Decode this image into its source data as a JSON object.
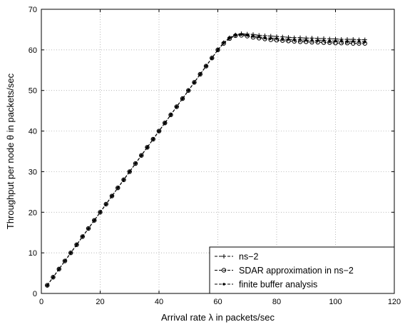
{
  "chart_data": {
    "type": "line",
    "xlabel": "Arrival rate λ in packets/sec",
    "ylabel": "Throughput per node θ in packets/sec",
    "xlim": [
      0,
      120
    ],
    "ylim": [
      0,
      70
    ],
    "xticks": [
      0,
      20,
      40,
      60,
      80,
      100,
      120
    ],
    "yticks": [
      0,
      10,
      20,
      30,
      40,
      50,
      60,
      70
    ],
    "x_tick_labels": [
      "0",
      "20",
      "40",
      "60",
      "80",
      "100",
      "120"
    ],
    "y_tick_labels": [
      "0",
      "10",
      "20",
      "30",
      "40",
      "50",
      "60",
      "70"
    ],
    "grid": true,
    "legend_position": "bottom-right",
    "x": [
      2,
      4,
      6,
      8,
      10,
      12,
      14,
      16,
      18,
      20,
      22,
      24,
      26,
      28,
      30,
      32,
      34,
      36,
      38,
      40,
      42,
      44,
      46,
      48,
      50,
      52,
      54,
      56,
      58,
      60,
      62,
      64,
      66,
      68,
      70,
      72,
      74,
      76,
      78,
      80,
      82,
      84,
      86,
      88,
      90,
      92,
      94,
      96,
      98,
      100,
      102,
      104,
      106,
      108,
      110
    ],
    "series": [
      {
        "name": "ns−2",
        "marker": "plus",
        "values": [
          2,
          4,
          6,
          8,
          10,
          12,
          14,
          16,
          18,
          20,
          22,
          24,
          26,
          28,
          30,
          32,
          34,
          36,
          38,
          40,
          42,
          44,
          46,
          48,
          50,
          52,
          54,
          56,
          58,
          60,
          61.8,
          63,
          63.7,
          64,
          63.9,
          63.8,
          63.6,
          63.5,
          63.4,
          63.3,
          63.2,
          63.1,
          63.0,
          63.0,
          62.9,
          62.9,
          62.8,
          62.8,
          62.7,
          62.7,
          62.6,
          62.6,
          62.6,
          62.5,
          62.5
        ]
      },
      {
        "name": "SDAR approximation in ns−2",
        "marker": "circle",
        "values": [
          2,
          4,
          6,
          8,
          10,
          12,
          14,
          16,
          18,
          20,
          22,
          24,
          26,
          28,
          30,
          32,
          34,
          36,
          38,
          40,
          42,
          44,
          46,
          48,
          50,
          52,
          54,
          56,
          58,
          60,
          61.6,
          62.8,
          63.5,
          63.6,
          63.4,
          63.1,
          62.9,
          62.7,
          62.5,
          62.4,
          62.3,
          62.2,
          62.1,
          62.0,
          62.0,
          61.9,
          61.9,
          61.8,
          61.8,
          61.7,
          61.7,
          61.7,
          61.6,
          61.6,
          61.6
        ]
      },
      {
        "name": "finite buffer analysis",
        "marker": "dot",
        "values": [
          2,
          4,
          6,
          8,
          10,
          12,
          14,
          16,
          18,
          20,
          22,
          24,
          26,
          28,
          30,
          32,
          34,
          36,
          38,
          40,
          42,
          44,
          46,
          48,
          50,
          52,
          54,
          56,
          58,
          60,
          61.7,
          62.9,
          63.6,
          63.8,
          63.6,
          63.4,
          63.2,
          63.0,
          62.9,
          62.8,
          62.7,
          62.6,
          62.5,
          62.5,
          62.4,
          62.4,
          62.3,
          62.3,
          62.2,
          62.2,
          62.2,
          62.1,
          62.1,
          62.1,
          62.0
        ]
      }
    ]
  }
}
